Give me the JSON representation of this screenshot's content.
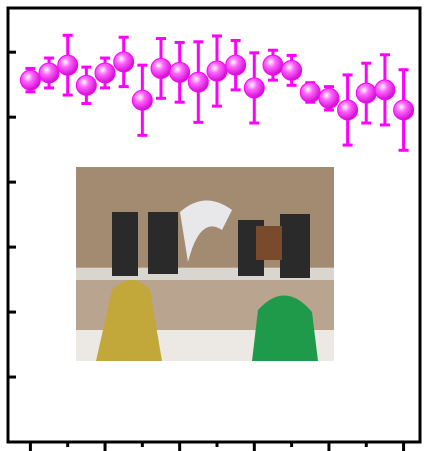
{
  "chart_data": {
    "type": "scatter",
    "x": [
      0,
      0.25,
      0.5,
      0.75,
      1,
      1.25,
      1.5,
      1.75,
      2,
      2.25,
      2.5,
      2.75,
      3,
      3.25,
      3.5,
      3.75,
      4,
      4.25,
      4.5,
      4.75,
      5
    ],
    "series": [
      {
        "color": "#ff00ff",
        "values": [
          5.57,
          5.68,
          5.8,
          5.49,
          5.68,
          5.85,
          5.26,
          5.75,
          5.69,
          5.54,
          5.71,
          5.8,
          5.45,
          5.8,
          5.72,
          5.38,
          5.29,
          5.11,
          5.37,
          5.42,
          5.11
        ],
        "errors": [
          0.18,
          0.23,
          0.46,
          0.28,
          0.23,
          0.38,
          0.54,
          0.46,
          0.46,
          0.62,
          0.54,
          0.38,
          0.54,
          0.23,
          0.23,
          0.15,
          0.18,
          0.54,
          0.46,
          0.54,
          0.62
        ]
      }
    ],
    "xlim": [
      -0.3,
      5.22
    ],
    "ylim": [
      0,
      6.68
    ],
    "xticks": [
      0,
      0.5,
      1,
      1.5,
      2,
      2.5,
      3,
      3.5,
      4,
      4.5,
      5
    ],
    "yticks": [
      1,
      2,
      3,
      4,
      5,
      6
    ]
  }
}
